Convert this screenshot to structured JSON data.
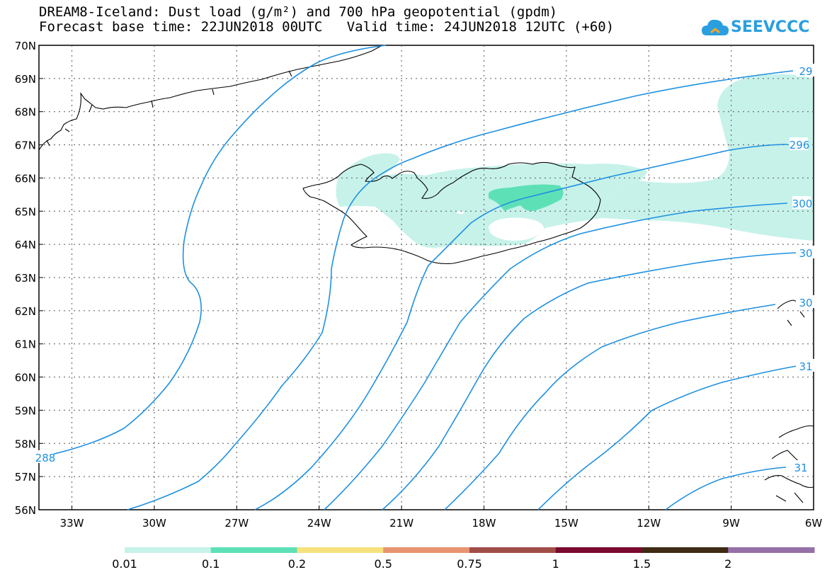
{
  "title": {
    "line1": "DREAM8-Iceland: Dust load (g/m²) and 700 hPa geopotential (gpdm)",
    "line2_left": "Forecast base time: 22JUN2018 00UTC",
    "line2_right": "Valid time: 24JUN2018 12UTC (+60)"
  },
  "logo": {
    "text": "SEEVCCC",
    "icon": "cloud-icon",
    "color": "#2a9fe0"
  },
  "map": {
    "lon_range": [
      -34.2,
      -6
    ],
    "lat_range": [
      56,
      70
    ],
    "lat_labels": [
      "70N",
      "69N",
      "68N",
      "67N",
      "66N",
      "65N",
      "64N",
      "63N",
      "62N",
      "61N",
      "60N",
      "59N",
      "58N",
      "57N",
      "56N"
    ],
    "lon_labels": [
      "33W",
      "30W",
      "27W",
      "24W",
      "21W",
      "18W",
      "15W",
      "12W",
      "9W",
      "6W"
    ],
    "grid": true,
    "contour_labels": [
      "29",
      "296",
      "300",
      "30",
      "30",
      "31",
      "31",
      "288"
    ],
    "contour_color": "#1e90e0",
    "coast_color": "#000000"
  },
  "colorbar": {
    "colors": [
      "#c6f2ea",
      "#5ee0b7",
      "#f5e27d",
      "#e89470",
      "#a14d48",
      "#7b0a2f",
      "#3f2a14",
      "#9670a8"
    ],
    "labels": [
      "0.01",
      "0.1",
      "0.2",
      "0.5",
      "0.75",
      "1",
      "1.5",
      "2"
    ]
  },
  "dust": {
    "low_color": "#c6f2ea",
    "mid_color": "#5ee0b7"
  }
}
